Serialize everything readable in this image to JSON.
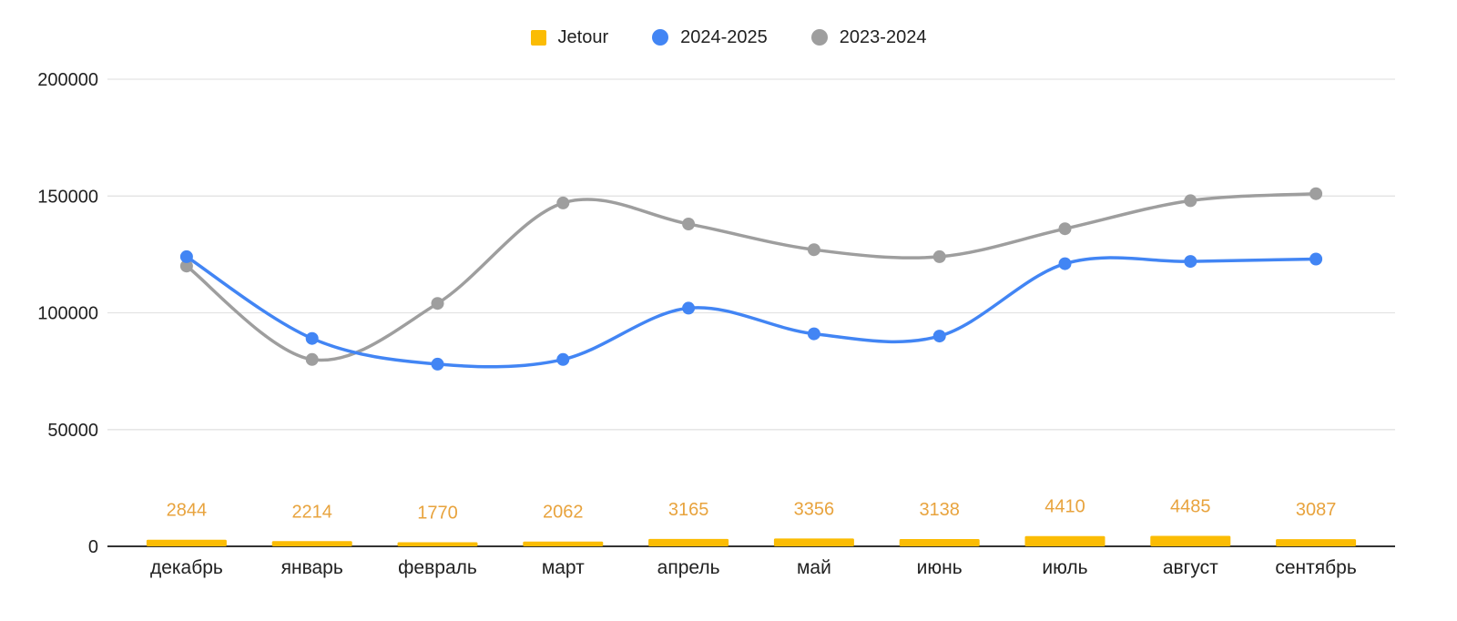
{
  "chart_data": {
    "type": "combo",
    "title": "",
    "categories": [
      "декабрь",
      "январь",
      "февраль",
      "март",
      "апрель",
      "май",
      "июнь",
      "июль",
      "август",
      "сентябрь"
    ],
    "series": [
      {
        "name": "Jetour",
        "type": "bar",
        "color": "#FBBC04",
        "label_color": "#E8A33D",
        "data_labels": true,
        "values": [
          2844,
          2214,
          1770,
          2062,
          3165,
          3356,
          3138,
          4410,
          4485,
          3087
        ]
      },
      {
        "name": "2024-2025",
        "type": "line",
        "color": "#4285F4",
        "values": [
          124000,
          89000,
          78000,
          80000,
          102000,
          91000,
          90000,
          121000,
          122000,
          123000
        ]
      },
      {
        "name": "2023-2024",
        "type": "line",
        "color": "#9E9E9E",
        "values": [
          120000,
          80000,
          104000,
          147000,
          138000,
          127000,
          124000,
          136000,
          148000,
          151000
        ]
      }
    ],
    "y_axis": {
      "min": 0,
      "max": 200000,
      "ticks": [
        0,
        50000,
        100000,
        150000,
        200000
      ],
      "tick_labels": [
        "0",
        "50000",
        "100000",
        "150000",
        "200000"
      ]
    },
    "grid": true,
    "legend_position": "top",
    "colors": {
      "background": "#FFFFFF",
      "gridline": "#E3E3E3",
      "axis_line": "#333333",
      "text": "#212121"
    }
  }
}
